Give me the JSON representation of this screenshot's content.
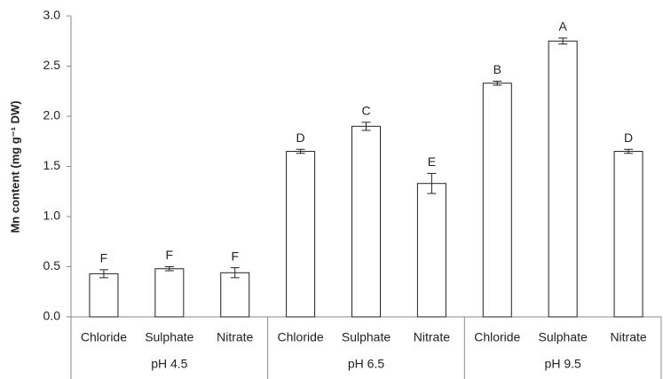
{
  "chart_data": {
    "type": "bar",
    "y_label": "Mn content (mg g⁻¹ DW)",
    "categories": [
      "Chloride",
      "Sulphate",
      "Nitrate",
      "Chloride",
      "Sulphate",
      "Nitrate",
      "Chloride",
      "Sulphate",
      "Nitrate"
    ],
    "groups": [
      "pH 4.5",
      "pH 6.5",
      "pH 9.5"
    ],
    "values": [
      0.43,
      0.48,
      0.44,
      1.65,
      1.9,
      1.33,
      2.33,
      2.75,
      1.65
    ],
    "errors": [
      0.04,
      0.02,
      0.05,
      0.02,
      0.04,
      0.1,
      0.02,
      0.03,
      0.02
    ],
    "annotations": [
      "F",
      "F",
      "F",
      "D",
      "C",
      "E",
      "B",
      "A",
      "D"
    ],
    "color": "#ffffff",
    "ylim": [
      0,
      3.0
    ],
    "yticks": [
      {
        "value": 0,
        "label": "0.0"
      },
      {
        "value": 0.5,
        "label": "0.5"
      },
      {
        "value": 1.0,
        "label": "1.0"
      },
      {
        "value": 1.5,
        "label": "1.5"
      },
      {
        "value": 2.0,
        "label": "2.0"
      },
      {
        "value": 2.5,
        "label": "2.5"
      },
      {
        "value": 3.0,
        "label": "3.0"
      }
    ],
    "grid": false
  }
}
